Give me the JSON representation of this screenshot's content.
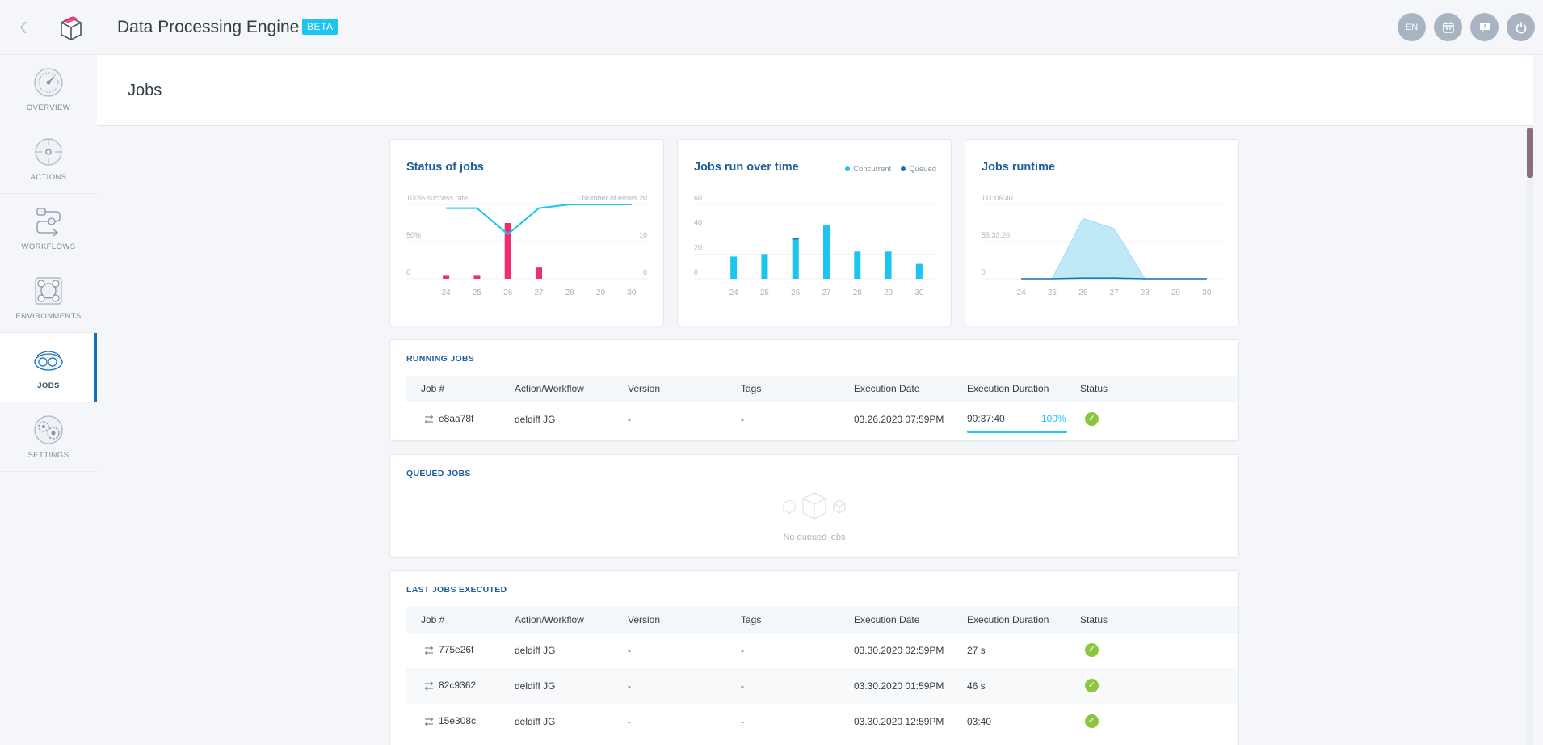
{
  "app": {
    "title": "Data Processing Engine",
    "badge": "BETA"
  },
  "toolbar": {
    "lang": "EN"
  },
  "icons": {
    "back": "chevron-left-icon",
    "logo": "box-logo-icon",
    "calendar": "calendar-icon",
    "chat": "chat-icon",
    "power": "power-icon",
    "job": "swap-arrows-icon",
    "status_ok": "check-circle-icon"
  },
  "colors": {
    "accent": "#1ec4f0",
    "title_blue": "#1f5f9a",
    "error_pink": "#ee2f6c",
    "success_green": "#8cc63e",
    "active_bar": "#1a6fb4"
  },
  "sidebar": {
    "items": [
      {
        "label": "OVERVIEW",
        "icon": "dashboard-gauge-icon",
        "active": false
      },
      {
        "label": "ACTIONS",
        "icon": "target-icon",
        "active": false
      },
      {
        "label": "WORKFLOWS",
        "icon": "workflow-icon",
        "active": false
      },
      {
        "label": "ENVIRONMENTS",
        "icon": "environment-icon",
        "active": false
      },
      {
        "label": "JOBS",
        "icon": "jobs-cogs-icon",
        "active": true
      },
      {
        "label": "SETTINGS",
        "icon": "settings-gears-icon",
        "active": false
      }
    ]
  },
  "page": {
    "title": "Jobs"
  },
  "chart_data": [
    {
      "type": "bar",
      "title": "Status of jobs",
      "left_axis_label": "100% success rate",
      "right_axis_label": "Number of errors",
      "left_ticks": [
        "100% success rate",
        "50%",
        "0"
      ],
      "right_ticks": [
        "20",
        "10",
        "0"
      ],
      "categories": [
        "24",
        "25",
        "26",
        "27",
        "28",
        "29",
        "30"
      ],
      "series": [
        {
          "values": [
            1,
            1,
            15,
            3,
            0,
            0,
            0
          ]
        },
        {
          "values": [
            0.95,
            0.95,
            0.6,
            0.95,
            1.0,
            1.0,
            1.0
          ]
        }
      ],
      "ylim_left": [
        0,
        1
      ],
      "ylim_right": [
        0,
        20
      ]
    },
    {
      "type": "bar",
      "title": "Jobs run over time",
      "legend": [
        "Concurrent",
        "Queued"
      ],
      "y_ticks": [
        "60",
        "40",
        "20",
        "0"
      ],
      "categories": [
        "24",
        "25",
        "26",
        "27",
        "28",
        "29",
        "30"
      ],
      "series": [
        {
          "name": "Concurrent",
          "values": [
            18,
            20,
            33,
            43,
            22,
            22,
            12
          ]
        },
        {
          "name": "Queued",
          "values": [
            0,
            0,
            1,
            0,
            0,
            0,
            0
          ]
        }
      ],
      "ylim": [
        0,
        60
      ]
    },
    {
      "type": "area",
      "title": "Jobs runtime",
      "y_ticks": [
        "111:06:40",
        "55:33:20",
        "0"
      ],
      "categories": [
        "24",
        "25",
        "26",
        "27",
        "28",
        "29",
        "30"
      ],
      "series": [
        {
          "values": [
            0,
            0,
            90,
            75,
            0,
            0,
            0
          ]
        },
        {
          "values": [
            0,
            0,
            1,
            1,
            0,
            0,
            0
          ]
        }
      ],
      "ylim": [
        0,
        111
      ]
    }
  ],
  "running": {
    "title": "RUNNING JOBS",
    "headers": [
      "Job #",
      "Action/Workflow",
      "Version",
      "Tags",
      "Execution Date",
      "Execution Duration",
      "Status"
    ],
    "rows": [
      {
        "job": "e8aa78f",
        "action": "deldiff JG",
        "version": "-",
        "tags": "-",
        "date": "03.26.2020 07:59PM",
        "duration": "90:37:40",
        "progress": "100%",
        "progress_value": 1.0
      }
    ]
  },
  "queued": {
    "title": "QUEUED JOBS",
    "empty_text": "No queued jobs",
    "empty_icon": "empty-boxes-icon"
  },
  "last": {
    "title": "LAST JOBS EXECUTED",
    "headers": [
      "Job #",
      "Action/Workflow",
      "Version",
      "Tags",
      "Execution Date",
      "Execution Duration",
      "Status"
    ],
    "rows": [
      {
        "job": "775e26f",
        "action": "deldiff JG",
        "version": "-",
        "tags": "-",
        "date": "03.30.2020 02:59PM",
        "duration": "27 s"
      },
      {
        "job": "82c9362",
        "action": "deldiff JG",
        "version": "-",
        "tags": "-",
        "date": "03.30.2020 01:59PM",
        "duration": "46 s"
      },
      {
        "job": "15e308c",
        "action": "deldiff JG",
        "version": "-",
        "tags": "-",
        "date": "03.30.2020 12:59PM",
        "duration": "03:40"
      }
    ]
  }
}
